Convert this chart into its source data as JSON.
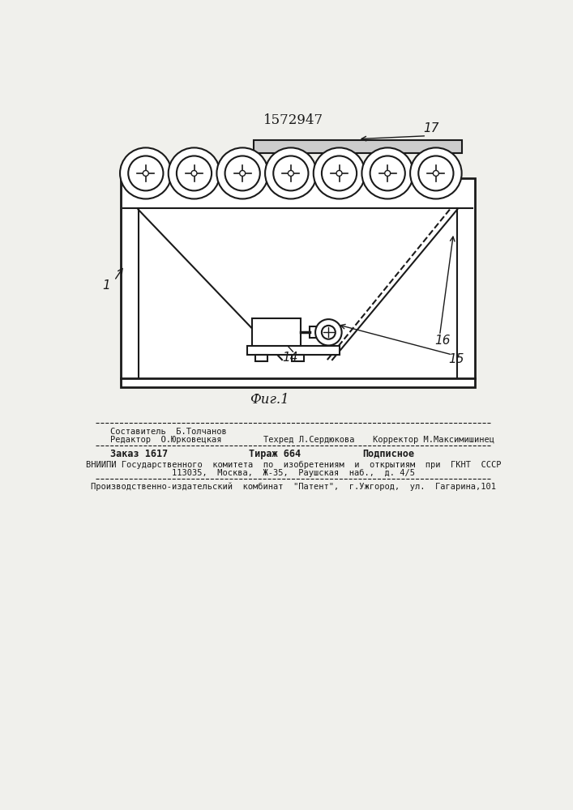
{
  "title": "1572947",
  "fig_label": "Фиг.1",
  "background_color": "#f0f0ec",
  "line_color": "#1a1a1a",
  "footer": {
    "editor_label": "Редактор  О.Юрковецкая",
    "composer_label": "Составитель  Б.Толчанов",
    "techred_label": "Техред Л.Сердюкова",
    "corrector_label": "Корректор М.Максимишинец",
    "order_label": "Заказ 1617",
    "tirazh_label": "Тираж 664",
    "podpisnoe_label": "Подписное",
    "vniip_line1": "ВНИИПИ Государственного  комитета  по  изобретениям  и  открытиям  при  ГКНТ  СССР",
    "vniip_line2": "113035,  Москва,  Ж-35,  Раушская  наб.,  д. 4/5",
    "kombinat_line": "Производственно-издательский  комбинат  \"Патент\",  г.Ужгород,  ул.  Гагарина,101"
  }
}
